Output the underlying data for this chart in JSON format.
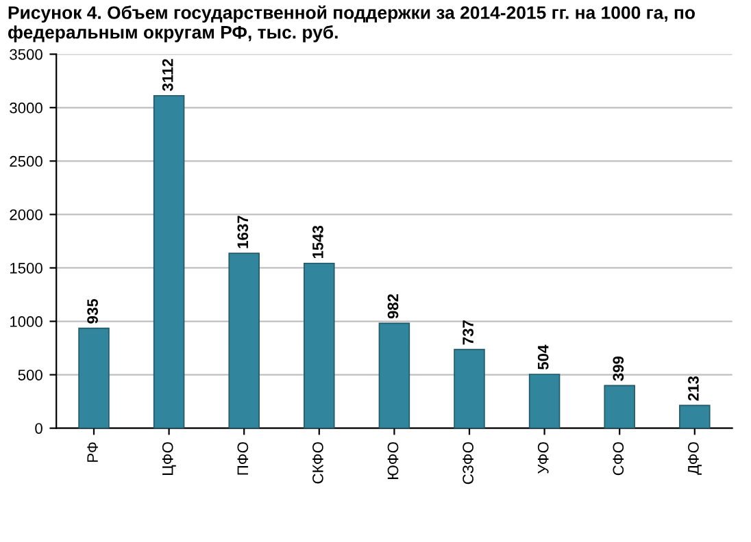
{
  "chart_data": {
    "type": "bar",
    "title": "Рисунок 4. Объем государственной поддержки за 2014-2015 гг. на 1000 га, по федеральным округам РФ, тыс. руб.",
    "categories": [
      "РФ",
      "ЦФО",
      "ПФО",
      "СКФО",
      "ЮФО",
      "СЗФО",
      "УФО",
      "СФО",
      "ДФО"
    ],
    "values": [
      935,
      3112,
      1637,
      1543,
      982,
      737,
      504,
      399,
      213
    ],
    "color": "#31859c",
    "ylim": [
      0,
      3500
    ],
    "yticks": [
      0,
      500,
      1000,
      1500,
      2000,
      2500,
      3000,
      3500
    ],
    "grid": "y",
    "data_labels": true
  }
}
